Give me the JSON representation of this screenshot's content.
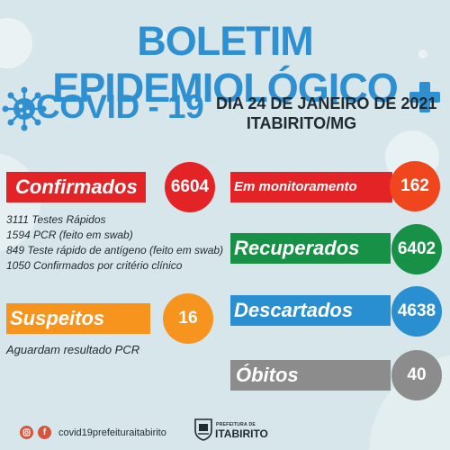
{
  "header": {
    "title": "BOLETIM EPIDEMIOLÓGICO",
    "subtitle": "COVID - 19",
    "date_line1": "DIA 24 DE JANEIRO DE 2021",
    "date_line2": "ITABIRITO/MG"
  },
  "colors": {
    "background": "#d7e6ea",
    "title_blue": "#2e8fd1",
    "confirmed_red": "#e42326",
    "monitoring_red": "#f0461e",
    "suspect_orange": "#f7941d",
    "recovered_green": "#169146",
    "discarded_blue": "#2a8fd0",
    "deaths_grey": "#8c8c8c"
  },
  "stats": {
    "confirmed": {
      "label": "Confirmados",
      "value": "6604"
    },
    "monitoring": {
      "label": "Em monitoramento",
      "value": "162"
    },
    "recovered": {
      "label": "Recuperados",
      "value": "6402"
    },
    "suspects": {
      "label": "Suspeitos",
      "value": "16"
    },
    "discarded": {
      "label": "Descartados",
      "value": "4638"
    },
    "deaths": {
      "label": "Óbitos",
      "value": "40"
    }
  },
  "confirmed_details": [
    "3111 Testes Rápidos",
    "1594 PCR (feito em swab)",
    "849 Teste rápido de antígeno (feito em swab)",
    "1050 Confirmados por critério clínico"
  ],
  "suspects_note": "Aguardam resultado PCR",
  "footer": {
    "social_icons": [
      "instagram-icon",
      "facebook-icon"
    ],
    "handle": "covid19prefeituraitabirito",
    "logo_top": "PREFEITURA DE",
    "logo_name": "ITABIRITO"
  }
}
